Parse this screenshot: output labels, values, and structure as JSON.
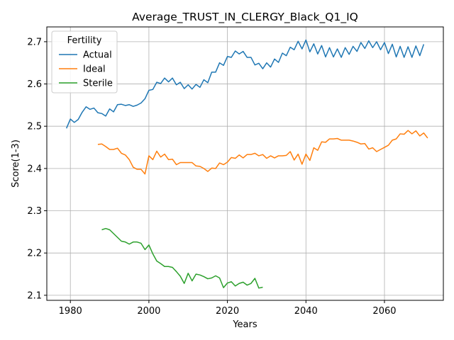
{
  "chart_data": {
    "type": "line",
    "title": "Average_TRUST_IN_CLERGY_Black_Q1_IQ",
    "xlabel": "Years",
    "ylabel": "Score(1-3)",
    "xlim": [
      1974,
      2075
    ],
    "ylim": [
      2.088,
      2.735
    ],
    "x_ticks": [
      1980,
      2000,
      2020,
      2040,
      2060
    ],
    "y_ticks": [
      2.1,
      2.2,
      2.3,
      2.4,
      2.5,
      2.6,
      2.7
    ],
    "x_tick_labels": [
      "1980",
      "2000",
      "2020",
      "2040",
      "2060"
    ],
    "y_tick_labels": [
      "2.1",
      "2.2",
      "2.3",
      "2.4",
      "2.5",
      "2.6",
      "2.7"
    ],
    "grid": true,
    "legend": {
      "title": "Fertility",
      "placement": "upper-left"
    },
    "series": [
      {
        "name": "Actual",
        "color": "#1f77b4",
        "start_year": 1979,
        "values": [
          2.495,
          2.517,
          2.509,
          2.516,
          2.533,
          2.546,
          2.54,
          2.543,
          2.532,
          2.53,
          2.524,
          2.541,
          2.534,
          2.551,
          2.552,
          2.549,
          2.551,
          2.547,
          2.55,
          2.555,
          2.565,
          2.585,
          2.587,
          2.604,
          2.601,
          2.614,
          2.605,
          2.614,
          2.598,
          2.604,
          2.589,
          2.598,
          2.588,
          2.599,
          2.592,
          2.61,
          2.603,
          2.628,
          2.628,
          2.65,
          2.644,
          2.665,
          2.663,
          2.678,
          2.671,
          2.677,
          2.663,
          2.663,
          2.645,
          2.649,
          2.636,
          2.65,
          2.64,
          2.659,
          2.651,
          2.673,
          2.667,
          2.687,
          2.681,
          2.701,
          2.683,
          2.704,
          2.676,
          2.695,
          2.671,
          2.691,
          2.664,
          2.686,
          2.664,
          2.683,
          2.663,
          2.686,
          2.67,
          2.689,
          2.677,
          2.698,
          2.684,
          2.702,
          2.686,
          2.7,
          2.681,
          2.698,
          2.672,
          2.694,
          2.664,
          2.689,
          2.663,
          2.688,
          2.663,
          2.69,
          2.667,
          2.694
        ]
      },
      {
        "name": "Ideal",
        "color": "#ff7f0e",
        "start_year": 1987,
        "values": [
          2.457,
          2.458,
          2.452,
          2.445,
          2.445,
          2.448,
          2.436,
          2.432,
          2.421,
          2.403,
          2.398,
          2.398,
          2.387,
          2.43,
          2.421,
          2.441,
          2.427,
          2.434,
          2.421,
          2.422,
          2.409,
          2.414,
          2.414,
          2.414,
          2.414,
          2.406,
          2.405,
          2.4,
          2.393,
          2.401,
          2.4,
          2.413,
          2.409,
          2.415,
          2.426,
          2.424,
          2.432,
          2.425,
          2.433,
          2.433,
          2.436,
          2.43,
          2.433,
          2.424,
          2.43,
          2.425,
          2.43,
          2.43,
          2.431,
          2.44,
          2.42,
          2.434,
          2.41,
          2.434,
          2.419,
          2.449,
          2.443,
          2.463,
          2.462,
          2.47,
          2.47,
          2.471,
          2.467,
          2.467,
          2.467,
          2.465,
          2.462,
          2.458,
          2.459,
          2.446,
          2.449,
          2.44,
          2.445,
          2.45,
          2.455,
          2.467,
          2.47,
          2.482,
          2.481,
          2.49,
          2.482,
          2.489,
          2.477,
          2.484,
          2.472
        ]
      },
      {
        "name": "Sterile",
        "color": "#2ca02c",
        "start_year": 1988,
        "values": [
          2.255,
          2.258,
          2.255,
          2.246,
          2.237,
          2.228,
          2.226,
          2.221,
          2.226,
          2.226,
          2.223,
          2.208,
          2.219,
          2.198,
          2.181,
          2.175,
          2.168,
          2.168,
          2.166,
          2.156,
          2.145,
          2.128,
          2.152,
          2.134,
          2.15,
          2.148,
          2.144,
          2.139,
          2.141,
          2.146,
          2.141,
          2.118,
          2.129,
          2.132,
          2.122,
          2.128,
          2.131,
          2.124,
          2.128,
          2.14,
          2.117,
          2.119
        ]
      }
    ]
  }
}
